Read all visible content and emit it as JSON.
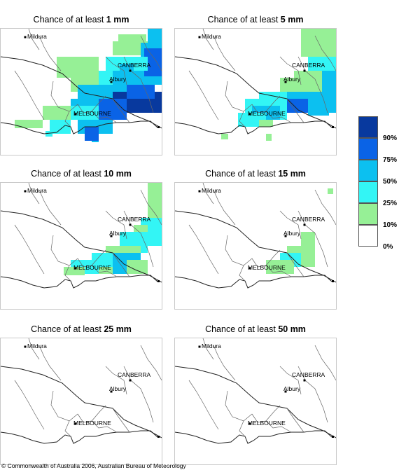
{
  "title_prefix": "Chance of at least",
  "places": {
    "mildura": "Mildura",
    "canberra": "CANBERRA",
    "albury": "Albury",
    "melbourne": "MELBOURNE"
  },
  "panels": [
    {
      "amount": "1 mm"
    },
    {
      "amount": "5 mm"
    },
    {
      "amount": "10 mm"
    },
    {
      "amount": "15 mm"
    },
    {
      "amount": "25 mm"
    },
    {
      "amount": "50 mm"
    }
  ],
  "legend": [
    {
      "label": "90%",
      "color": "#08399e"
    },
    {
      "label": "75%",
      "color": "#0a63e6"
    },
    {
      "label": "50%",
      "color": "#0cc0f0"
    },
    {
      "label": "25%",
      "color": "#33f5f5"
    },
    {
      "label": "10%",
      "color": "#96f096"
    },
    {
      "label": "0%",
      "color": "#ffffff"
    }
  ],
  "footer": "© Commonwealth of Australia 2006, Australian Bureau of Meteorology"
}
